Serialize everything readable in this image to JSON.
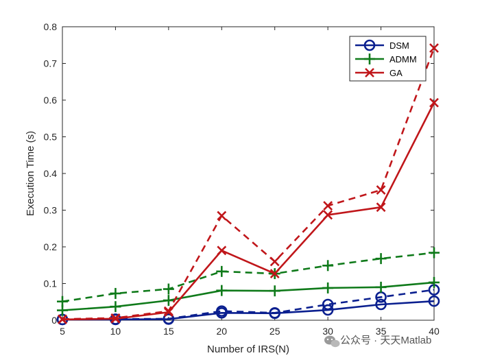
{
  "chart_data": {
    "type": "line",
    "xlabel": "Number of IRS(N)",
    "ylabel": "Execution Time (s)",
    "x": [
      5,
      10,
      15,
      20,
      25,
      30,
      35,
      40
    ],
    "xlim": [
      5,
      40
    ],
    "ylim": [
      0,
      0.8
    ],
    "xticks": [
      "5",
      "10",
      "15",
      "20",
      "25",
      "30",
      "35",
      "40"
    ],
    "yticks": [
      "0",
      "0.1",
      "0.2",
      "0.3",
      "0.4",
      "0.5",
      "0.6",
      "0.7",
      "0.8"
    ],
    "grid": false,
    "legend_position": "top-right",
    "legend": [
      {
        "name": "DSM",
        "color": "#0a1f8f",
        "marker": "circle"
      },
      {
        "name": "ADMM",
        "color": "#0f7a1a",
        "marker": "plus"
      },
      {
        "name": "GA",
        "color": "#c0161a",
        "marker": "x"
      }
    ],
    "series": [
      {
        "legend": "DSM",
        "style": "solid",
        "color": "#0a1f8f",
        "marker": "circle",
        "values": [
          0.002,
          0.002,
          0.003,
          0.02,
          0.019,
          0.028,
          0.043,
          0.052
        ]
      },
      {
        "legend": "DSM",
        "style": "dashed",
        "color": "#0a1f8f",
        "marker": "circle",
        "values": [
          0.002,
          0.003,
          0.004,
          0.025,
          0.02,
          0.043,
          0.063,
          0.083
        ]
      },
      {
        "legend": "ADMM",
        "style": "solid",
        "color": "#0f7a1a",
        "marker": "plus",
        "values": [
          0.027,
          0.037,
          0.054,
          0.081,
          0.08,
          0.088,
          0.09,
          0.103
        ]
      },
      {
        "legend": "ADMM",
        "style": "dashed",
        "color": "#0f7a1a",
        "marker": "plus",
        "values": [
          0.051,
          0.073,
          0.085,
          0.133,
          0.127,
          0.149,
          0.168,
          0.184
        ]
      },
      {
        "legend": "GA",
        "style": "solid",
        "color": "#c0161a",
        "marker": "x",
        "values": [
          0.002,
          0.004,
          0.022,
          0.19,
          0.127,
          0.287,
          0.308,
          0.593
        ]
      },
      {
        "legend": "GA",
        "style": "dashed",
        "color": "#c0161a",
        "marker": "x",
        "values": [
          0.003,
          0.006,
          0.025,
          0.285,
          0.16,
          0.312,
          0.355,
          0.742
        ]
      }
    ]
  },
  "watermark": {
    "text": "公众号 · 天天Matlab",
    "icon": "wechat-icon"
  }
}
